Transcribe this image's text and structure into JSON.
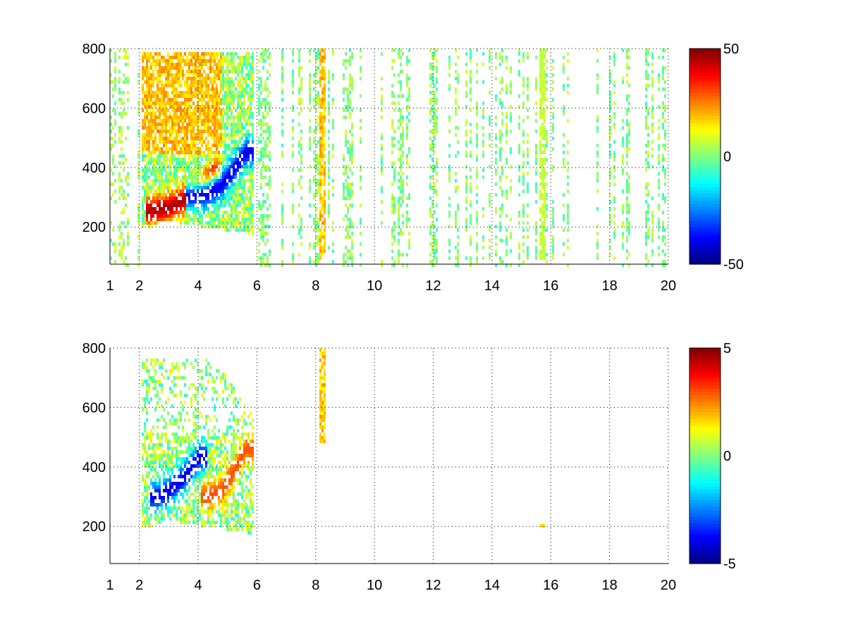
{
  "chart_data": [
    {
      "type": "heatmap",
      "title": "",
      "xlabel": "",
      "ylabel": "",
      "xlim": [
        1,
        20
      ],
      "ylim": [
        75,
        800
      ],
      "xticks": [
        1,
        2,
        4,
        6,
        8,
        10,
        12,
        14,
        16,
        18,
        20
      ],
      "yticks": [
        200,
        400,
        600,
        800
      ],
      "grid": true,
      "colormap": "jet",
      "colorbar": {
        "limits": [
          -50,
          50
        ],
        "ticks": [
          -50,
          0,
          50
        ]
      },
      "background_color": "#ffffff",
      "features": [
        {
          "name": "positive band",
          "x": [
            2.4,
            3.0,
            3.5,
            4.0,
            4.5
          ],
          "y": [
            255,
            265,
            290,
            320,
            380
          ],
          "value": 45
        },
        {
          "name": "negative band",
          "x": [
            3.8,
            4.3,
            4.8,
            5.2,
            5.6
          ],
          "y": [
            300,
            310,
            340,
            390,
            450
          ],
          "value": -40
        },
        {
          "name": "vertical streak",
          "x": [
            8.25
          ],
          "y_range": [
            90,
            800
          ],
          "value": 20
        },
        {
          "name": "vertical streak",
          "x": [
            15.7
          ],
          "y_range": [
            90,
            800
          ],
          "value": 8
        }
      ]
    },
    {
      "type": "heatmap",
      "title": "",
      "xlabel": "",
      "ylabel": "",
      "xlim": [
        1,
        20
      ],
      "ylim": [
        75,
        800
      ],
      "xticks": [
        1,
        2,
        4,
        6,
        8,
        10,
        12,
        14,
        16,
        18,
        20
      ],
      "yticks": [
        200,
        400,
        600,
        800
      ],
      "grid": true,
      "colormap": "jet",
      "colorbar": {
        "limits": [
          -5,
          5
        ],
        "ticks": [
          -5,
          0,
          5
        ]
      },
      "background_color": "#ffffff",
      "features": [
        {
          "name": "negative band",
          "x": [
            2.6,
            3.0,
            3.5,
            4.0
          ],
          "y": [
            300,
            320,
            360,
            430
          ],
          "value": -4
        },
        {
          "name": "positive band",
          "x": [
            4.3,
            4.8,
            5.2,
            5.6
          ],
          "y": [
            300,
            320,
            380,
            460
          ],
          "value": 3
        },
        {
          "name": "vertical streak",
          "x": [
            8.25
          ],
          "y_range": [
            480,
            800
          ],
          "value": 2
        },
        {
          "name": "isolated point",
          "x": [
            15.7
          ],
          "y_range": [
            195,
            205
          ],
          "value": 2
        }
      ]
    }
  ]
}
